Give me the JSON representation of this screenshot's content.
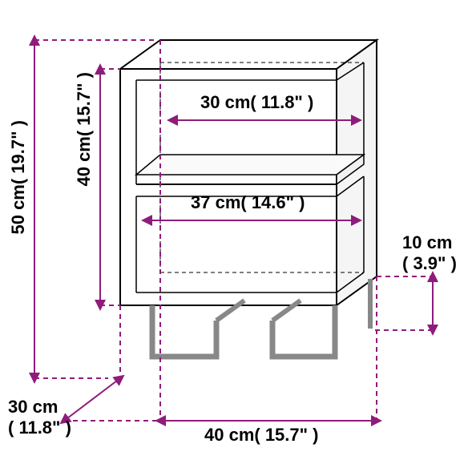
{
  "dimensions": {
    "height_total": {
      "cm": "50 cm( 19.7\" )",
      "label_fontsize": 22
    },
    "height_box": {
      "cm": "40 cm( 15.7\" )",
      "label_fontsize": 22
    },
    "shelf_top": {
      "cm": "30 cm( 11.8\" )",
      "label_fontsize": 22
    },
    "shelf_mid": {
      "cm": "37 cm( 14.6\" )",
      "label_fontsize": 22
    },
    "leg_height": {
      "cm": "10 cm( 3.9\" )",
      "label_fontsize": 22
    },
    "depth": {
      "cm": "30 cm( 11.8\" )",
      "label_fontsize": 22
    },
    "width": {
      "cm": "40 cm( 15.7\" )",
      "label_fontsize": 22
    }
  },
  "colors": {
    "dim_line": "#8e1c7a",
    "outline": "#000000",
    "background": "#ffffff",
    "panel_fill": "#ffffff",
    "panel_shade": "#f5f5f5",
    "leg": "#888888"
  },
  "stroke": {
    "outline_width": 2,
    "dim_line_width": 2,
    "dash": "6,5"
  }
}
